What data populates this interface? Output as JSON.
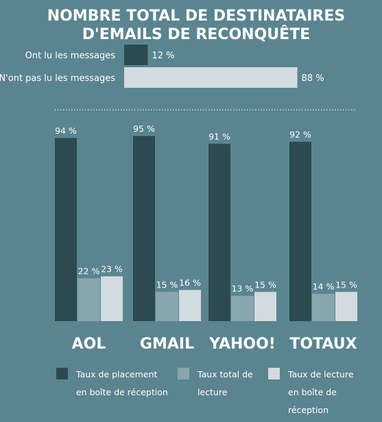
{
  "chart_data": [
    {
      "type": "bar",
      "orientation": "horizontal",
      "title": "NOMBRE TOTAL DE DESTINATAIRES D'EMAILS DE RECONQUÊTE",
      "title_lines": [
        "NOMBRE TOTAL DE DESTINATAIRES",
        "D'EMAILS DE RECONQUÊTE"
      ],
      "categories": [
        "Ont lu les messages",
        "N'ont pas lu les messages"
      ],
      "values": [
        12,
        88
      ],
      "value_labels": [
        "12 %",
        "88 %"
      ],
      "colors": [
        "#2c4a50",
        "#d2dbde"
      ],
      "xlim": [
        0,
        100
      ]
    },
    {
      "type": "bar",
      "orientation": "vertical",
      "categories": [
        "AOL",
        "GMAIL",
        "YAHOO!",
        "TOTAUX"
      ],
      "series": [
        {
          "name": "Taux de placement en boîte de réception",
          "legend_lines": [
            "Taux de placement",
            "en boîte de réception"
          ],
          "color": "#2c4a50",
          "values": [
            94,
            95,
            91,
            92
          ],
          "labels": [
            "94 %",
            "95 %",
            "91 %",
            "92 %"
          ]
        },
        {
          "name": "Taux total de lecture",
          "legend_lines": [
            "Taux total de",
            "lecture"
          ],
          "color": "#8aa6ad",
          "values": [
            22,
            15,
            13,
            14
          ],
          "labels": [
            "22 %",
            "15 %",
            "13 %",
            "14 %"
          ]
        },
        {
          "name": "Taux de lecture en boîte de réception",
          "legend_lines": [
            "Taux de lecture",
            "en boîte de",
            "réception"
          ],
          "color": "#d2dbde",
          "values": [
            23,
            16,
            15,
            15
          ],
          "labels": [
            "23 %",
            "16 %",
            "15 %",
            "15 %"
          ]
        }
      ],
      "ylim": [
        0,
        100
      ],
      "grid": false,
      "legend_position": "bottom"
    }
  ]
}
